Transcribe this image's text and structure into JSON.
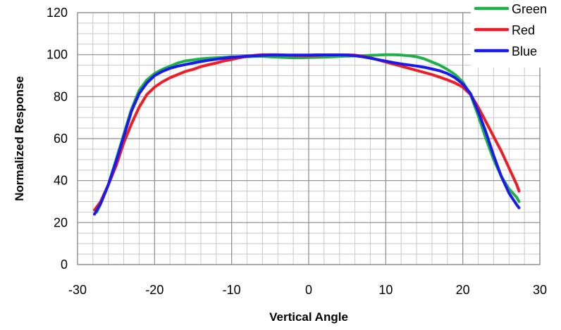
{
  "chart_data": {
    "type": "line",
    "title": "",
    "xlabel": "Vertical Angle",
    "ylabel": "Normalized Response",
    "xlim": [
      -30,
      30
    ],
    "ylim": [
      0,
      120
    ],
    "x_ticks": [
      -30,
      -20,
      -10,
      0,
      10,
      20,
      30
    ],
    "y_ticks": [
      0,
      20,
      40,
      60,
      80,
      100,
      120
    ],
    "grid": true,
    "legend_position": "top-right",
    "series": [
      {
        "name": "Green",
        "color": "#1eb14a",
        "x": [
          -27.5,
          -27,
          -26,
          -25,
          -24,
          -23,
          -22,
          -21,
          -20,
          -19,
          -18,
          -17,
          -16,
          -15,
          -14,
          -13,
          -12,
          -11,
          -10,
          -9,
          -8,
          -7,
          -6,
          -5,
          -4,
          -3,
          -2,
          -1,
          0,
          1,
          2,
          3,
          4,
          5,
          6,
          7,
          8,
          9,
          10,
          11,
          12,
          13,
          14,
          15,
          16,
          17,
          18,
          19,
          20,
          21,
          22,
          23,
          24,
          25,
          26,
          27,
          27.3
        ],
        "y": [
          25,
          29,
          38,
          50,
          62,
          74,
          83,
          88,
          91,
          93,
          94.5,
          96,
          97,
          97.5,
          98,
          98.3,
          98.5,
          98.7,
          99,
          99,
          99,
          99.2,
          99.2,
          99,
          98.8,
          98.6,
          98.5,
          98.5,
          98.6,
          98.7,
          98.8,
          99,
          99.2,
          99.3,
          99.4,
          99.5,
          99.7,
          99.8,
          100,
          100,
          99.8,
          99.5,
          99,
          98,
          96.5,
          95,
          93,
          90.5,
          87,
          81,
          71,
          60,
          50,
          42,
          36,
          32,
          30
        ]
      },
      {
        "name": "Red",
        "color": "#ee1c24",
        "x": [
          -27.8,
          -27,
          -26,
          -25,
          -24,
          -23,
          -22,
          -21,
          -20,
          -19,
          -18,
          -17,
          -16,
          -15,
          -14,
          -13,
          -12,
          -11,
          -10,
          -9,
          -8,
          -7,
          -6,
          -5,
          -4,
          -3,
          -2,
          -1,
          0,
          1,
          2,
          3,
          4,
          5,
          6,
          7,
          8,
          9,
          10,
          11,
          12,
          13,
          14,
          15,
          16,
          17,
          18,
          19,
          20,
          21,
          22,
          23,
          24,
          25,
          26,
          27,
          27.3
        ],
        "y": [
          26,
          30,
          38,
          47,
          58,
          67,
          75,
          81,
          84.5,
          87,
          89,
          90.5,
          92,
          93,
          94.3,
          95.2,
          96,
          97,
          97.7,
          98.5,
          99.2,
          99.7,
          100,
          100,
          100,
          99.8,
          99.6,
          99.5,
          99.5,
          99.6,
          99.8,
          99.9,
          99.9,
          99.9,
          99.8,
          99.2,
          98.5,
          97.5,
          96.5,
          95.5,
          94.5,
          93.5,
          92.5,
          91.5,
          90.5,
          89.3,
          88,
          86.5,
          84.5,
          81,
          75,
          68,
          61,
          54,
          46,
          38,
          35
        ]
      },
      {
        "name": "Blue",
        "color": "#1a1aee",
        "x": [
          -27.8,
          -27,
          -26,
          -25,
          -24,
          -23,
          -22,
          -21,
          -20,
          -19,
          -18,
          -17,
          -16,
          -15,
          -14,
          -13,
          -12,
          -11,
          -10,
          -9,
          -8,
          -7,
          -6,
          -5,
          -4,
          -3,
          -2,
          -1,
          0,
          1,
          2,
          3,
          4,
          5,
          6,
          7,
          8,
          9,
          10,
          11,
          12,
          13,
          14,
          15,
          16,
          17,
          18,
          19,
          20,
          21,
          22,
          23,
          24,
          25,
          26,
          27,
          27.3
        ],
        "y": [
          24,
          29,
          38,
          49,
          61,
          73,
          81.5,
          86.5,
          90,
          92,
          93.5,
          94.5,
          95.3,
          96,
          96.7,
          97.3,
          97.8,
          98.3,
          98.7,
          99,
          99.3,
          99.5,
          99.7,
          99.8,
          99.8,
          99.8,
          99.8,
          99.8,
          99.8,
          99.9,
          99.9,
          99.9,
          99.9,
          99.8,
          99.5,
          99,
          98.3,
          97.6,
          96.9,
          96.2,
          95.6,
          95.1,
          94.6,
          94,
          93.2,
          92.3,
          91,
          89,
          86,
          81.5,
          73,
          63,
          52,
          42,
          34,
          28.5,
          27
        ]
      }
    ]
  }
}
